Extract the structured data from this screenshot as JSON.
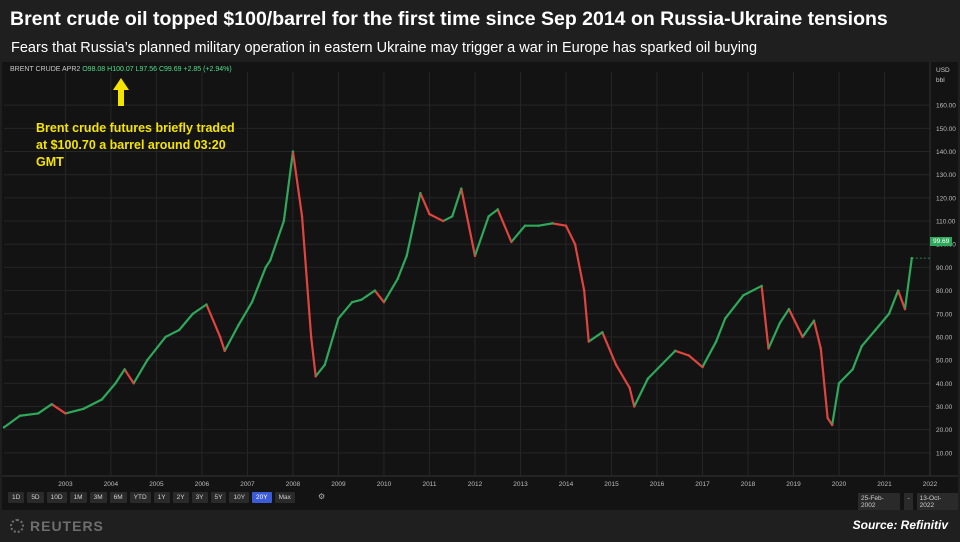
{
  "header": {
    "title": "Brent crude oil topped $100/barrel for the first time since Sep 2014 on Russia-Ukraine tensions",
    "subtitle": "Fears that Russia’s planned military operation in eastern Ukraine may trigger a war in Europe has sparked oil buying"
  },
  "ticker": {
    "name": "BRENT CRUDE APR2",
    "open": "O98.08",
    "high": "H100.07",
    "low": "L97.56",
    "close": "C99.69",
    "change": "+2.85 (+2.94%)"
  },
  "axis": {
    "currency": "USD",
    "unit": "bbl"
  },
  "annotation": {
    "text": "Brent crude futures briefly traded at $100.70 a barrel around 03:20 GMT"
  },
  "last_price_label": "99.69",
  "range_buttons": [
    "1D",
    "5D",
    "10D",
    "1M",
    "3M",
    "6M",
    "YTD",
    "1Y",
    "2Y",
    "3Y",
    "5Y",
    "10Y",
    "20Y",
    "Max"
  ],
  "active_range": "20Y",
  "date_range": {
    "from": "25-Feb-2002",
    "to": "13-Oct-2022"
  },
  "footer": {
    "logo": "REUTERS",
    "source": "Source: Refinitiv"
  },
  "colors": {
    "up": "#2ea85a",
    "down": "#e0443f",
    "background": "#131313",
    "annotation": "#f5e400"
  },
  "chart_data": {
    "type": "line",
    "title": "Brent crude oil topped $100/barrel for the first time since Sep 2014 on Russia-Ukraine tensions",
    "xlabel": "",
    "ylabel": "",
    "x_ticks": [
      "2003",
      "2004",
      "2005",
      "2006",
      "2007",
      "2008",
      "2009",
      "2010",
      "2011",
      "2012",
      "2013",
      "2014",
      "2015",
      "2016",
      "2017",
      "2018",
      "2019",
      "2020",
      "2021",
      "2022"
    ],
    "y_ticks": [
      "10.00",
      "20.00",
      "30.00",
      "40.00",
      "50.00",
      "60.00",
      "70.00",
      "80.00",
      "90.00",
      "100.00",
      "110.00",
      "120.00",
      "130.00",
      "140.00",
      "150.00",
      "160.00"
    ],
    "ylim": [
      0,
      170
    ],
    "xlim": [
      2002.15,
      2022.5
    ],
    "grid": true,
    "series": [
      {
        "x": [
          2002.15,
          2002.5,
          2002.9,
          2003.2,
          2003.5,
          2003.9,
          2004.3,
          2004.6,
          2004.8,
          2005.0,
          2005.3,
          2005.7,
          2006.0,
          2006.3,
          2006.6,
          2006.9,
          2007.0,
          2007.3,
          2007.6,
          2007.9,
          2008.0,
          2008.3,
          2008.5,
          2008.7,
          2008.9,
          2009.0,
          2009.2,
          2009.5,
          2009.8,
          2010.0,
          2010.3,
          2010.5,
          2010.8,
          2011.0,
          2011.3,
          2011.5,
          2011.8,
          2012.0,
          2012.2,
          2012.5,
          2012.8,
          2013.0,
          2013.3,
          2013.6,
          2013.9,
          2014.2,
          2014.5,
          2014.7,
          2014.9,
          2015.0,
          2015.3,
          2015.6,
          2015.9,
          2016.0,
          2016.3,
          2016.6,
          2016.9,
          2017.2,
          2017.5,
          2017.8,
          2018.0,
          2018.4,
          2018.8,
          2018.95,
          2019.2,
          2019.4,
          2019.7,
          2019.95,
          2020.1,
          2020.25,
          2020.35,
          2020.5,
          2020.8,
          2021.0,
          2021.3,
          2021.6,
          2021.8,
          2021.95,
          2022.1
        ],
        "values": [
          21,
          26,
          27,
          31,
          27,
          29,
          33,
          40,
          46,
          40,
          50,
          60,
          63,
          70,
          74,
          60,
          54,
          65,
          75,
          90,
          93,
          110,
          140,
          112,
          60,
          43,
          48,
          68,
          75,
          76,
          80,
          75,
          85,
          95,
          122,
          113,
          110,
          112,
          124,
          95,
          112,
          115,
          101,
          108,
          108,
          109,
          108,
          100,
          80,
          58,
          62,
          48,
          38,
          30,
          42,
          48,
          54,
          52,
          47,
          58,
          68,
          78,
          82,
          55,
          66,
          72,
          60,
          67,
          55,
          25,
          22,
          40,
          46,
          56,
          63,
          70,
          80,
          72,
          94
        ]
      }
    ]
  }
}
